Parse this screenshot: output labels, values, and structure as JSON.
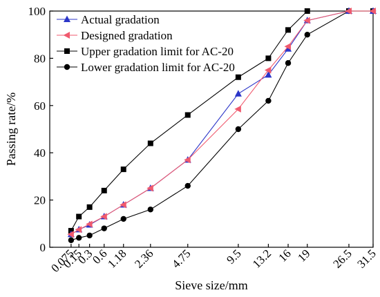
{
  "chart_data": {
    "type": "line",
    "title": "",
    "xlabel": "Sieve size/mm",
    "ylabel": "Passing rate/%",
    "x_scale": "power-0.45",
    "ylim": [
      0,
      100
    ],
    "y_ticks": [
      0,
      20,
      40,
      60,
      80,
      100
    ],
    "x": [
      0.075,
      0.15,
      0.3,
      0.6,
      1.18,
      2.36,
      4.75,
      9.5,
      13.2,
      16,
      19,
      26.5,
      31.5
    ],
    "x_tick_labels": [
      "0.075",
      "0.15",
      "0.3",
      "0.6",
      "1.18",
      "2.36",
      "4.75",
      "9.5",
      "13.2",
      "16",
      "19",
      "26.5",
      "31.5"
    ],
    "grid": false,
    "legend_position": "top-left",
    "series": [
      {
        "name": "Actual gradation",
        "color": "#2b35c8",
        "marker": "triangle-up",
        "values": [
          5.5,
          7.5,
          9.5,
          13,
          18,
          25,
          37,
          65,
          73,
          84,
          96,
          100,
          100
        ]
      },
      {
        "name": "Designed gradation",
        "color": "#f05a6e",
        "marker": "triangle-left",
        "values": [
          5.5,
          7.5,
          9.8,
          13,
          18,
          25,
          37,
          58.5,
          75,
          85,
          96,
          100,
          100
        ]
      },
      {
        "name": "Upper gradation limit for AC-20",
        "color": "#000000",
        "marker": "square",
        "values": [
          7,
          13,
          17,
          24,
          33,
          44,
          56,
          72,
          80,
          92,
          100,
          100,
          100
        ]
      },
      {
        "name": "Lower gradation limit for AC-20",
        "color": "#000000",
        "marker": "circle",
        "values": [
          3,
          4,
          5,
          8,
          12,
          16,
          26,
          50,
          62,
          78,
          90,
          100,
          100
        ]
      }
    ]
  }
}
